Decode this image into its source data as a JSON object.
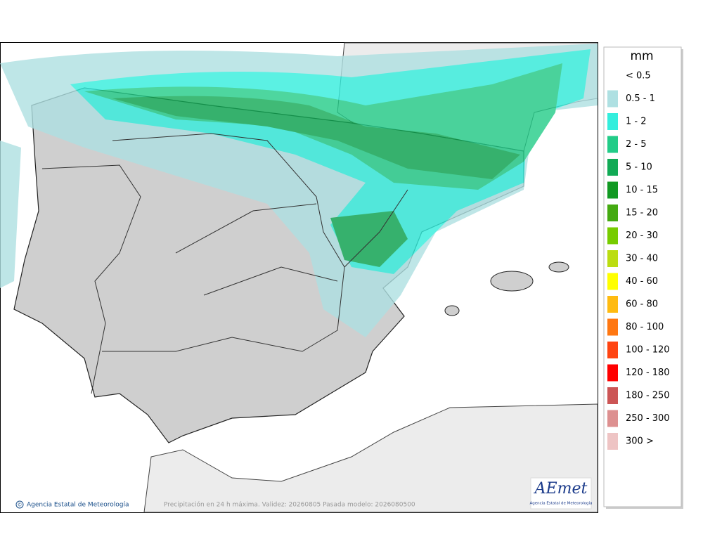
{
  "legend": {
    "title": "mm",
    "items": [
      {
        "label": "< 0.5"
      },
      {
        "label": "0.5 - 1",
        "color": "#aee0e2"
      },
      {
        "label": "1 - 2",
        "color": "#33eedd"
      },
      {
        "label": "2 - 5",
        "color": "#22cc88"
      },
      {
        "label": "5 - 10",
        "color": "#11aa55"
      },
      {
        "label": "10 - 15",
        "color": "#119922"
      },
      {
        "label": "15 - 20",
        "color": "#44aa11"
      },
      {
        "label": "20 - 30",
        "color": "#77cc00"
      },
      {
        "label": "30 - 40",
        "color": "#bbdd11"
      },
      {
        "label": "40 - 60",
        "color": "#ffff00"
      },
      {
        "label": "60 - 80",
        "color": "#ffbb11"
      },
      {
        "label": "80 - 100",
        "color": "#ff7711"
      },
      {
        "label": "100 - 120",
        "color": "#ff4411"
      },
      {
        "label": "120 - 180",
        "color": "#ff0000"
      },
      {
        "label": "180 - 250",
        "color": "#cc5555"
      },
      {
        "label": "250 - 300",
        "color": "#dd9090"
      },
      {
        "label": "300 >",
        "color": "#eec4c4"
      }
    ]
  },
  "footer": {
    "symbol": "©",
    "agency": "Agencia Estatal de Meteorología",
    "caption": "Precipitación en 24 h máxima. Validez: 20260805 Pasada modelo: 2026080500"
  },
  "logo": {
    "name": "AEmet",
    "subtitle": "Agencia Estatal de Meteorología"
  }
}
